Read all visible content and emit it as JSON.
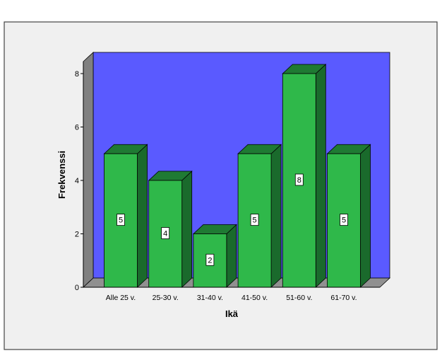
{
  "chart_data": {
    "type": "bar",
    "style": "3d",
    "categories": [
      "Alle 25 v.",
      "25-30 v.",
      "31-40 v.",
      "41-50 v.",
      "51-60 v.",
      "61-70 v."
    ],
    "values": [
      5,
      4,
      2,
      5,
      8,
      5
    ],
    "data_labels": [
      "5",
      "4",
      "2",
      "5",
      "8",
      "5"
    ],
    "title": "",
    "xlabel": "Ikä",
    "ylabel": "Frekvenssi",
    "ylim": [
      0,
      8
    ],
    "yticks": [
      "0",
      "2",
      "4",
      "6",
      "8"
    ],
    "grid": false,
    "legend": "none",
    "colors": {
      "frame_background": "#f0f0f0",
      "frame_border": "#444444",
      "back_wall": "#5a5aff",
      "side_wall": "#808080",
      "floor": "#909090",
      "bar_front": "#2fb84a",
      "bar_top": "#1f7a33",
      "bar_side": "#1a6a2c",
      "data_label_background": "#ffffff"
    }
  }
}
